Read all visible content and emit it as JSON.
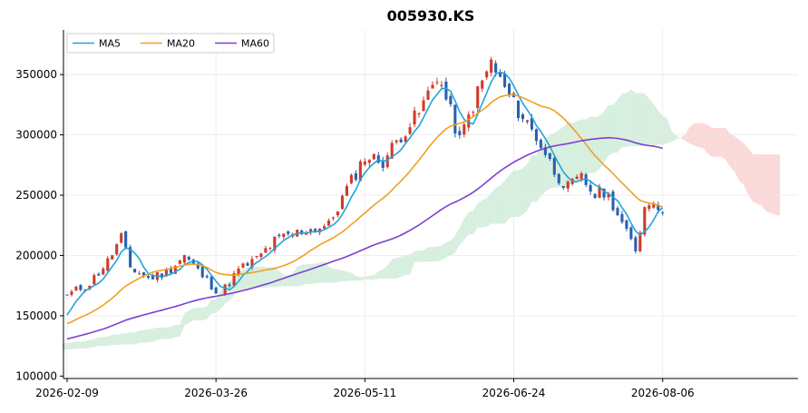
{
  "chart_data": {
    "type": "candlestick",
    "title": "005930.KS",
    "xlabel": "",
    "ylabel": "",
    "x_tick_labels": [
      "2026-02-09",
      "2026-03-26",
      "2026-05-11",
      "2026-06-24",
      "2026-08-06"
    ],
    "x_tick_index": [
      0,
      33,
      66,
      99,
      132
    ],
    "y_ticks": [
      100000,
      150000,
      200000,
      250000,
      300000,
      350000
    ],
    "y_tick_labels": [
      "100000",
      "150000",
      "200000",
      "250000",
      "300000",
      "350000"
    ],
    "ylim": [
      98000,
      387000
    ],
    "x_index_range": [
      -0.8,
      162
    ],
    "grid": true,
    "legend_position": "top-left",
    "colors": {
      "up": "#d03a2a",
      "down": "#2a5fb0",
      "ma5": "#1fa4dc",
      "ma20": "#f0a020",
      "ma60": "#7d3fd4",
      "cloud_bull": "#bde5c8",
      "cloud_bear": "#f9c0c0"
    },
    "close_anchors": [
      [
        0,
        167000
      ],
      [
        5,
        177000
      ],
      [
        9,
        195000
      ],
      [
        12,
        215000
      ],
      [
        14,
        190000
      ],
      [
        18,
        181000
      ],
      [
        22,
        186000
      ],
      [
        26,
        200000
      ],
      [
        30,
        183000
      ],
      [
        34,
        168000
      ],
      [
        38,
        188000
      ],
      [
        42,
        197000
      ],
      [
        46,
        212000
      ],
      [
        50,
        218000
      ],
      [
        54,
        222000
      ],
      [
        58,
        225000
      ],
      [
        62,
        255000
      ],
      [
        66,
        282000
      ],
      [
        70,
        278000
      ],
      [
        74,
        300000
      ],
      [
        78,
        318000
      ],
      [
        82,
        350000
      ],
      [
        84,
        330000
      ],
      [
        87,
        295000
      ],
      [
        91,
        335000
      ],
      [
        94,
        360000
      ],
      [
        96,
        345000
      ],
      [
        99,
        325000
      ],
      [
        102,
        310000
      ],
      [
        105,
        292000
      ],
      [
        108,
        270000
      ],
      [
        111,
        256000
      ],
      [
        114,
        264000
      ],
      [
        117,
        250000
      ],
      [
        119,
        253000
      ],
      [
        121,
        243000
      ],
      [
        124,
        218000
      ],
      [
        126,
        205000
      ],
      [
        128,
        240000
      ],
      [
        130,
        248000
      ],
      [
        132,
        235000
      ]
    ],
    "ma_series": [
      {
        "name": "MA5",
        "window": 5,
        "color": "#1fa4dc"
      },
      {
        "name": "MA20",
        "window": 20,
        "color": "#f0a020"
      },
      {
        "name": "MA60",
        "window": 60,
        "color": "#7d3fd4"
      }
    ],
    "ichimoku": {
      "displacement": 26
    }
  }
}
